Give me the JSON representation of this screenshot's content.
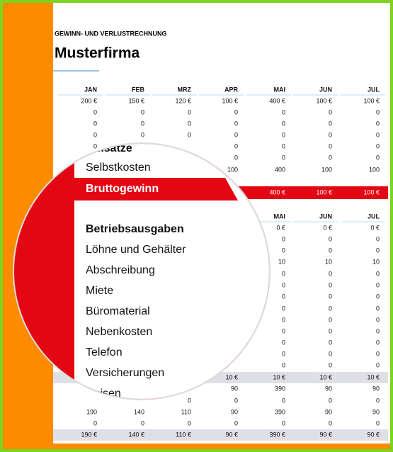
{
  "header": {
    "title": "GEWINN- UND VERLUSTRECHNUNG",
    "company": "Musterfirma"
  },
  "table": {
    "months": [
      "JAN",
      "FEB",
      "MRZ",
      "APR",
      "MAI",
      "JUN",
      "JUL"
    ],
    "rows": [
      {
        "cells": [
          "200 €",
          "150 €",
          "120 €",
          "100 €",
          "400 €",
          "100 €",
          "100 €"
        ]
      },
      {
        "cells": [
          "0",
          "0",
          "0",
          "0",
          "0",
          "0",
          "0"
        ]
      },
      {
        "cells": [
          "0",
          "0",
          "0",
          "0",
          "0",
          "0",
          "0"
        ]
      },
      {
        "cells": [
          "0",
          "0",
          "0",
          "0",
          "0",
          "0",
          "0"
        ]
      },
      {
        "cells": [
          "0",
          null,
          null,
          "0",
          "0",
          "0",
          "0"
        ]
      },
      {
        "cells": [
          null,
          null,
          null,
          "0",
          "0",
          "0",
          "0"
        ]
      },
      {
        "cells": [
          null,
          null,
          null,
          "100",
          "400",
          "100",
          "100"
        ]
      },
      {
        "cells": [
          null,
          null,
          null,
          null,
          "400 €",
          "100 €",
          "100 €"
        ],
        "highlight": true
      }
    ]
  },
  "lower_table": {
    "months": [
      null,
      null,
      null,
      null,
      "MAI",
      "JUN",
      "JUL"
    ],
    "rows": [
      {
        "cells": [
          null,
          null,
          null,
          null,
          "0 €",
          "0 €",
          "0 €"
        ]
      },
      {
        "cells": [
          null,
          null,
          null,
          null,
          "0",
          "0",
          "0"
        ]
      },
      {
        "cells": [
          null,
          null,
          null,
          null,
          "0",
          "0",
          "0"
        ]
      },
      {
        "cells": [
          null,
          null,
          null,
          null,
          "10",
          "10",
          "10"
        ]
      },
      {
        "cells": [
          null,
          null,
          null,
          null,
          "0",
          "0",
          "0"
        ]
      },
      {
        "cells": [
          null,
          null,
          null,
          null,
          "0",
          "0",
          "0"
        ]
      },
      {
        "cells": [
          null,
          null,
          null,
          null,
          "0",
          "0",
          "0"
        ]
      },
      {
        "cells": [
          null,
          null,
          null,
          null,
          "0",
          "0",
          "0"
        ]
      },
      {
        "cells": [
          null,
          null,
          null,
          null,
          "0",
          "0",
          "0"
        ]
      },
      {
        "cells": [
          null,
          null,
          null,
          null,
          "0",
          "0",
          "0"
        ]
      },
      {
        "cells": [
          null,
          null,
          null,
          null,
          "0",
          "0",
          "0"
        ]
      },
      {
        "cells": [
          null,
          null,
          null,
          null,
          "0",
          "0",
          "0"
        ]
      },
      {
        "cells": [
          null,
          null,
          null,
          null,
          "0",
          "0",
          "0"
        ]
      },
      {
        "cells": [
          null,
          null,
          null,
          "10 €",
          "10 €",
          "10 €",
          "10 €"
        ],
        "shaded": true
      },
      {
        "cells": [
          null,
          null,
          null,
          "90",
          "390",
          "90",
          "90"
        ]
      },
      {
        "cells": [
          null,
          null,
          "0",
          "0",
          "0",
          "0",
          "0"
        ]
      },
      {
        "cells": [
          "190",
          "140",
          "110",
          "90",
          "390",
          "90",
          "90"
        ]
      },
      {
        "cells": [
          "0",
          "0",
          "0",
          "0",
          "0",
          "0",
          "0"
        ]
      },
      {
        "cells": [
          "190 €",
          "140 €",
          "110 €",
          "90 €",
          "390 €",
          "90 €",
          "90 €"
        ],
        "shaded": true
      }
    ]
  },
  "magnifier": {
    "labels": [
      {
        "text": "Umsätze",
        "bold": true
      },
      {
        "text": "Selbstkosten"
      },
      {
        "text": "Bruttogewinn",
        "bold": true,
        "highlight": true
      },
      {
        "text": "Betriebsausgaben",
        "bold": true
      },
      {
        "text": "Löhne und Gehälter"
      },
      {
        "text": "Abschreibung"
      },
      {
        "text": "Miete"
      },
      {
        "text": "Büromaterial"
      },
      {
        "text": "Nebenkosten"
      },
      {
        "text": "Telefon"
      },
      {
        "text": "Versicherungen"
      },
      {
        "text": "Reisen"
      }
    ]
  }
}
